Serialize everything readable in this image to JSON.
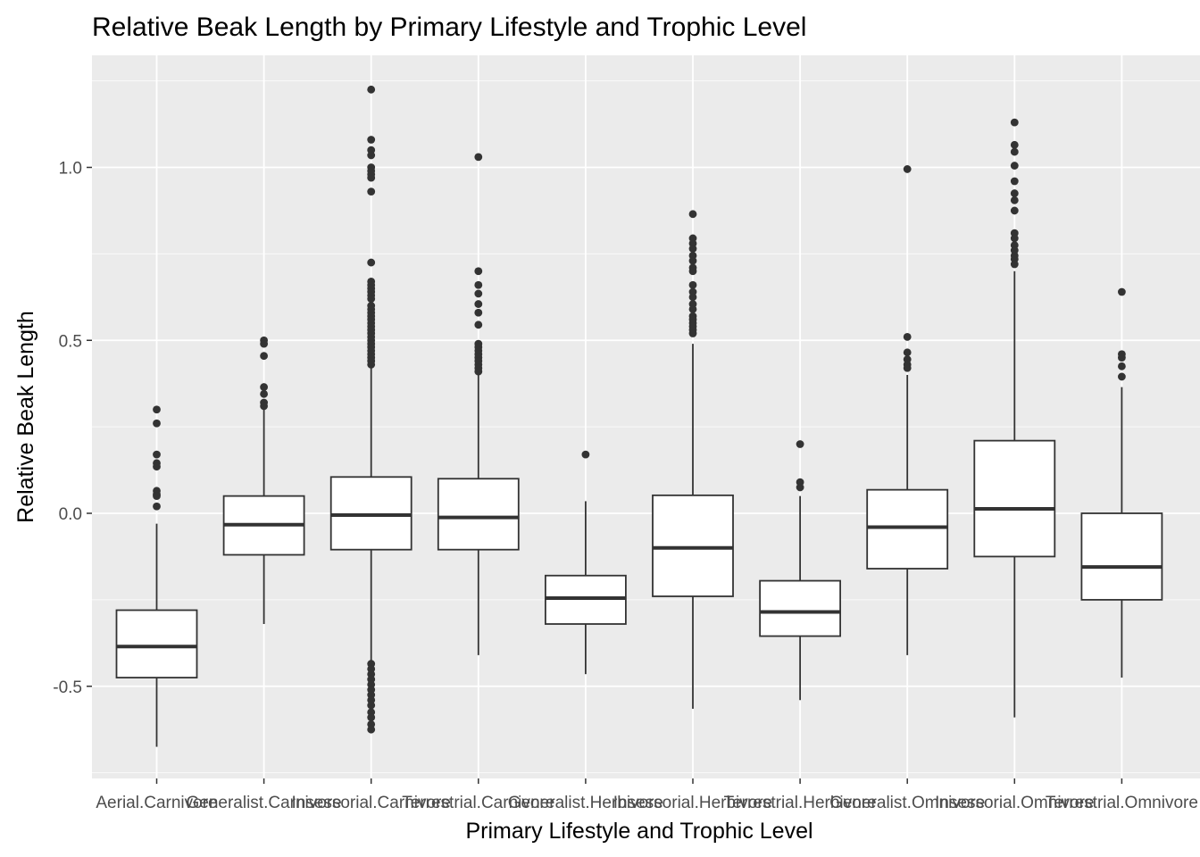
{
  "chart_data": {
    "type": "boxplot",
    "title": "Relative Beak Length by Primary Lifestyle and Trophic Level",
    "xlabel": "Primary Lifestyle and Trophic Level",
    "ylabel": "Relative Beak Length",
    "ylim": [
      -0.76,
      1.28
    ],
    "yticks": [
      -0.5,
      0.0,
      0.5,
      1.0
    ],
    "ytick_labels": [
      "-0.5",
      "0.0",
      "0.5",
      "1.0"
    ],
    "grid": true,
    "colors": {
      "panel": "#EBEBEB",
      "grid_major": "#FFFFFF",
      "box_fill": "#FFFFFF",
      "box_line": "#333333",
      "outlier": "#333333"
    },
    "categories": [
      "Aerial.Carnivore",
      "Generalist.Carnivore",
      "Insessorial.Carnivore",
      "Terrestrial.Carnivore",
      "Generalist.Herbivore",
      "Insessorial.Herbivore",
      "Terrestrial.Herbivore",
      "Generalist.Omnivore",
      "Insessorial.Omnivore",
      "Terrestrial.Omnivore"
    ],
    "boxes": [
      {
        "category": "Aerial.Carnivore",
        "whisker_low": -0.675,
        "q1": -0.475,
        "median": -0.385,
        "q3": -0.28,
        "whisker_high": -0.03,
        "outliers": [
          0.3,
          0.26,
          0.17,
          0.145,
          0.135,
          0.065,
          0.055,
          0.05,
          0.02
        ]
      },
      {
        "category": "Generalist.Carnivore",
        "whisker_low": -0.32,
        "q1": -0.12,
        "median": -0.033,
        "q3": 0.05,
        "whisker_high": 0.3,
        "outliers": [
          0.5,
          0.49,
          0.455,
          0.365,
          0.345,
          0.32,
          0.31
        ]
      },
      {
        "category": "Insessorial.Carnivore",
        "whisker_low": -0.425,
        "q1": -0.105,
        "median": -0.005,
        "q3": 0.105,
        "whisker_high": 0.42,
        "outliers": [
          1.225,
          1.08,
          1.05,
          1.035,
          1.0,
          0.99,
          0.98,
          0.97,
          0.93,
          0.725,
          0.67,
          0.66,
          0.65,
          0.64,
          0.63,
          0.62,
          0.6,
          0.59,
          0.58,
          0.57,
          0.56,
          0.55,
          0.54,
          0.53,
          0.52,
          0.51,
          0.5,
          0.49,
          0.48,
          0.47,
          0.46,
          0.45,
          0.44,
          0.43,
          -0.435,
          -0.45,
          -0.465,
          -0.48,
          -0.495,
          -0.51,
          -0.525,
          -0.54,
          -0.555,
          -0.575,
          -0.59,
          -0.61,
          -0.625
        ]
      },
      {
        "category": "Terrestrial.Carnivore",
        "whisker_low": -0.41,
        "q1": -0.105,
        "median": -0.012,
        "q3": 0.1,
        "whisker_high": 0.4,
        "outliers": [
          1.03,
          0.7,
          0.66,
          0.635,
          0.605,
          0.58,
          0.545,
          0.49,
          0.48,
          0.47,
          0.46,
          0.45,
          0.44,
          0.43,
          0.42,
          0.41
        ]
      },
      {
        "category": "Generalist.Herbivore",
        "whisker_low": -0.465,
        "q1": -0.32,
        "median": -0.245,
        "q3": -0.18,
        "whisker_high": 0.035,
        "outliers": [
          0.17
        ]
      },
      {
        "category": "Insessorial.Herbivore",
        "whisker_low": -0.565,
        "q1": -0.24,
        "median": -0.1,
        "q3": 0.052,
        "whisker_high": 0.49,
        "outliers": [
          0.865,
          0.795,
          0.78,
          0.765,
          0.745,
          0.73,
          0.71,
          0.7,
          0.66,
          0.64,
          0.625,
          0.605,
          0.59,
          0.57,
          0.56,
          0.55,
          0.54,
          0.53,
          0.52
        ]
      },
      {
        "category": "Terrestrial.Herbivore",
        "whisker_low": -0.54,
        "q1": -0.355,
        "median": -0.285,
        "q3": -0.195,
        "whisker_high": 0.05,
        "outliers": [
          0.2,
          0.09,
          0.075
        ]
      },
      {
        "category": "Generalist.Omnivore",
        "whisker_low": -0.41,
        "q1": -0.16,
        "median": -0.04,
        "q3": 0.068,
        "whisker_high": 0.4,
        "outliers": [
          0.995,
          0.51,
          0.465,
          0.445,
          0.43,
          0.42
        ]
      },
      {
        "category": "Insessorial.Omnivore",
        "whisker_low": -0.59,
        "q1": -0.125,
        "median": 0.013,
        "q3": 0.21,
        "whisker_high": 0.7,
        "outliers": [
          1.13,
          1.065,
          1.045,
          1.005,
          0.96,
          0.925,
          0.905,
          0.875,
          0.81,
          0.795,
          0.775,
          0.76,
          0.745,
          0.735,
          0.72
        ]
      },
      {
        "category": "Terrestrial.Omnivore",
        "whisker_low": -0.475,
        "q1": -0.25,
        "median": -0.155,
        "q3": 0.0,
        "whisker_high": 0.365,
        "outliers": [
          0.64,
          0.46,
          0.45,
          0.425,
          0.395
        ]
      }
    ]
  }
}
